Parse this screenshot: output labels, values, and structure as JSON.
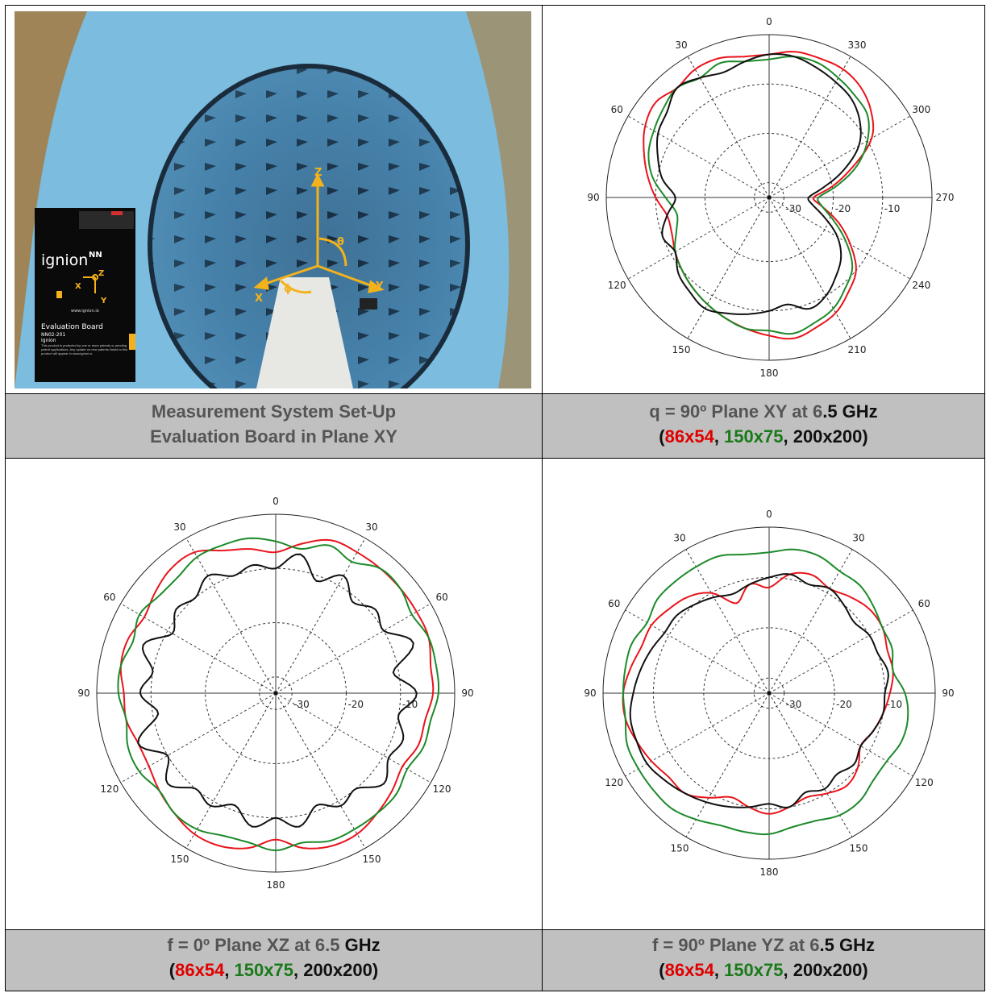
{
  "photo": {
    "board_brand": "ignion",
    "board_brand_mark": "NN",
    "board_url": "www.ignion.io",
    "board_title": "Evaluation Board",
    "board_part": "NN02-201",
    "board_company": "Ignion",
    "board_notice": "This product is protected by one or more patents or pending patent applications. Any update on new patents linked to this product will appear in www.ignion.io",
    "axis_z": "Z",
    "axis_x": "X",
    "axis_y": "Y",
    "angle_theta": "θ",
    "angle_phi": "ϕ",
    "board_axis_x": "X",
    "board_axis_y": "Y",
    "board_axis_z": "Z"
  },
  "captions": {
    "top_left_line1": "Measurement System Set-Up",
    "top_left_line2": "Evaluation Board in Plane XY",
    "top_right_line1_a": "q = 90º Plane XY at 6",
    "top_right_line1_b": ".5 GHz",
    "bottom_left_line1_a": "f = 0º Plane XZ at 6.5 ",
    "bottom_left_line1_b": "GHz",
    "bottom_right_line1_a": "f = 90º Plane YZ at 6",
    "bottom_right_line1_b": ".5 GHz",
    "open_paren": "(",
    "comma1": ", ",
    "comma2": ", ",
    "close_paren": ")",
    "series_red": "86x54",
    "series_green": "150x75",
    "series_black": "200x200"
  },
  "colors": {
    "red": "#e8141c",
    "green": "#1c8a2a",
    "black": "#111111",
    "caption_bg": "#c0c0c0"
  },
  "chart_data": [
    {
      "type": "polar-line",
      "plane": "XY",
      "angle_labels": [
        "0",
        "30",
        "60",
        "90",
        "120",
        "150",
        "180",
        "210",
        "240",
        "270",
        "300",
        "330"
      ],
      "radial_labels": [
        "-30",
        "-20",
        "-10"
      ],
      "rlim_db": [
        -33,
        0
      ],
      "series": [
        {
          "name": "86x54",
          "color": "#e8141c",
          "r_db": [
            -4,
            -4,
            -3,
            -3,
            -4,
            -3,
            -4,
            -6,
            -8,
            -10,
            -12,
            -12,
            -11,
            -10,
            -9,
            -8,
            -7,
            -6,
            -5,
            -4,
            -5,
            -6,
            -8,
            -10,
            -14,
            -18,
            -22,
            -24,
            -20,
            -15,
            -9,
            -6,
            -4,
            -3,
            -3,
            -3
          ]
        },
        {
          "name": "150x75",
          "color": "#1c8a2a",
          "r_db": [
            -5,
            -5,
            -4,
            -5,
            -4,
            -5,
            -6,
            -7,
            -9,
            -12,
            -14,
            -13,
            -11,
            -10,
            -9,
            -8,
            -7,
            -6,
            -6,
            -5,
            -6,
            -7,
            -9,
            -11,
            -15,
            -19,
            -22,
            -23,
            -19,
            -14,
            -10,
            -7,
            -6,
            -5,
            -4,
            -4
          ]
        },
        {
          "name": "200x200",
          "color": "#111111",
          "r_db": [
            -4,
            -5,
            -6,
            -5,
            -4,
            -6,
            -7,
            -9,
            -11,
            -14,
            -12,
            -10,
            -11,
            -9,
            -8,
            -7,
            -8,
            -9,
            -10,
            -11,
            -9,
            -10,
            -12,
            -14,
            -17,
            -21,
            -24,
            -25,
            -22,
            -17,
            -12,
            -9,
            -7,
            -6,
            -5,
            -4
          ]
        }
      ]
    },
    {
      "type": "polar-line",
      "plane": "XZ",
      "angle_labels": [
        "0",
        "30",
        "60",
        "90",
        "120",
        "150",
        "180",
        "150",
        "120",
        "90",
        "60",
        "30"
      ],
      "radial_labels": [
        "-30",
        "-20",
        "-10"
      ],
      "rlim_db": [
        -33,
        0
      ],
      "series": [
        {
          "name": "86x54",
          "color": "#e8141c",
          "r_db": [
            -7,
            -5,
            -3,
            -3,
            -3,
            -3,
            -3,
            -3,
            -4,
            -4,
            -5,
            -5,
            -6,
            -5,
            -4,
            -3,
            -3,
            -4,
            -6,
            -4,
            -3,
            -3,
            -4,
            -5,
            -6,
            -6,
            -5,
            -5,
            -4,
            -4,
            -5,
            -4,
            -3,
            -3,
            -5,
            -6
          ]
        },
        {
          "name": "150x75",
          "color": "#1c8a2a",
          "r_db": [
            -5,
            -6,
            -4,
            -5,
            -3,
            -3,
            -4,
            -3,
            -3,
            -3,
            -4,
            -4,
            -5,
            -4,
            -4,
            -4,
            -4,
            -5,
            -4,
            -5,
            -5,
            -4,
            -4,
            -5,
            -4,
            -4,
            -5,
            -4,
            -4,
            -5,
            -4,
            -5,
            -5,
            -4,
            -4,
            -4
          ]
        },
        {
          "name": "200x200",
          "color": "#111111",
          "r_db": [
            -10,
            -7,
            -11,
            -8,
            -11,
            -9,
            -10,
            -6,
            -11,
            -7,
            -10,
            -8,
            -9,
            -7,
            -10,
            -9,
            -11,
            -8,
            -10,
            -8,
            -11,
            -9,
            -10,
            -7,
            -10,
            -6,
            -11,
            -8,
            -10,
            -7,
            -11,
            -9,
            -10,
            -8,
            -10,
            -9
          ]
        }
      ]
    },
    {
      "type": "polar-line",
      "plane": "YZ",
      "angle_labels": [
        "0",
        "30",
        "60",
        "90",
        "120",
        "150",
        "180",
        "150",
        "120",
        "90",
        "60",
        "30"
      ],
      "radial_labels": [
        "-30",
        "-20",
        "-10"
      ],
      "rlim_db": [
        -33,
        0
      ],
      "series": [
        {
          "name": "86x54",
          "color": "#e8141c",
          "r_db": [
            -12,
            -9,
            -8,
            -9,
            -8,
            -7,
            -7,
            -8,
            -8,
            -9,
            -10,
            -11,
            -12,
            -10,
            -9,
            -10,
            -11,
            -10,
            -9,
            -10,
            -11,
            -9,
            -7,
            -7,
            -6,
            -5,
            -4,
            -4,
            -5,
            -6,
            -6,
            -7,
            -8,
            -10,
            -14,
            -11
          ]
        },
        {
          "name": "150x75",
          "color": "#1c8a2a",
          "r_db": [
            -5,
            -4,
            -4,
            -5,
            -5,
            -6,
            -7,
            -7,
            -8,
            -6,
            -5,
            -5,
            -6,
            -6,
            -5,
            -5,
            -6,
            -6,
            -5,
            -5,
            -5,
            -4,
            -3,
            -3,
            -3,
            -3,
            -4,
            -4,
            -4,
            -4,
            -5,
            -4,
            -4,
            -4,
            -4,
            -5
          ]
        },
        {
          "name": "200x200",
          "color": "#111111",
          "r_db": [
            -10,
            -9,
            -10,
            -9,
            -10,
            -11,
            -10,
            -10,
            -9,
            -10,
            -10,
            -11,
            -12,
            -11,
            -12,
            -11,
            -12,
            -10,
            -11,
            -10,
            -9,
            -8,
            -7,
            -6,
            -5,
            -5,
            -5,
            -6,
            -7,
            -8,
            -9,
            -9,
            -10,
            -11,
            -12,
            -11
          ]
        }
      ]
    }
  ]
}
